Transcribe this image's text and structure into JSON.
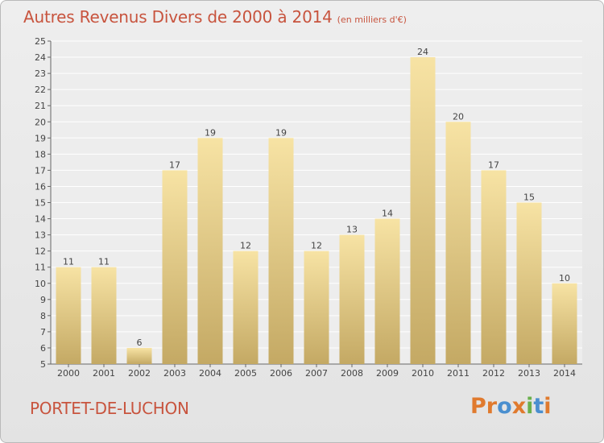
{
  "header": {
    "title": "Autres Revenus Divers de 2000 à 2014",
    "unit": "(en milliers d'€)"
  },
  "footer": {
    "commune": "PORTET-DE-LUCHON",
    "logo_text": "Proxiti"
  },
  "colors": {
    "title": "#c8543e",
    "bar_top": "#f7e3a4",
    "bar_bottom": "#c4a964",
    "logo_letters": [
      "#e07a2e",
      "#e07a2e",
      "#4a8fcf",
      "#e07a2e",
      "#6ab04c",
      "#4a8fcf",
      "#e07a2e"
    ]
  },
  "chart_data": {
    "type": "bar",
    "categories": [
      "2000",
      "2001",
      "2002",
      "2003",
      "2004",
      "2005",
      "2006",
      "2007",
      "2008",
      "2009",
      "2010",
      "2011",
      "2012",
      "2013",
      "2014"
    ],
    "values": [
      11,
      11,
      6,
      17,
      19,
      12,
      19,
      12,
      13,
      14,
      24,
      20,
      17,
      15,
      10
    ],
    "title": "Autres Revenus Divers de 2000 à 2014",
    "xlabel": "",
    "ylabel": "",
    "ylim": [
      5,
      25
    ],
    "yticks": [
      5,
      6,
      7,
      8,
      9,
      10,
      11,
      12,
      13,
      14,
      15,
      16,
      17,
      18,
      19,
      20,
      21,
      22,
      23,
      24,
      25
    ],
    "grid": true,
    "data_labels": true
  }
}
